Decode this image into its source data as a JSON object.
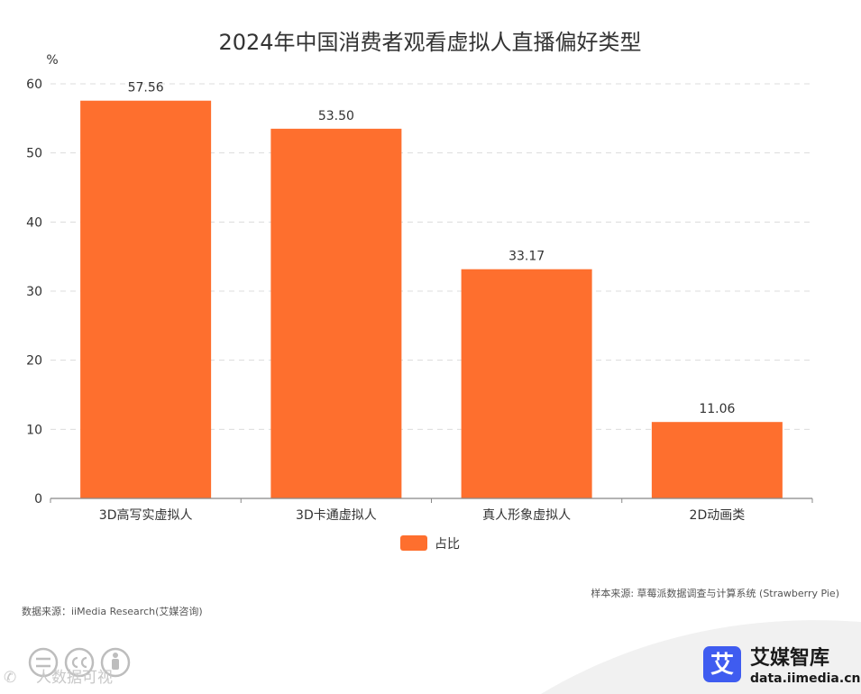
{
  "chart_data": {
    "type": "bar",
    "title": "2024年中国消费者观看虚拟人直播偏好类型",
    "ylabel": "%",
    "xlabel": "",
    "ylim": [
      0,
      60
    ],
    "yticks": [
      0,
      10,
      20,
      30,
      40,
      50,
      60
    ],
    "grid": true,
    "categories": [
      "3D高写实虚拟人",
      "3D卡通虚拟人",
      "真人形象虚拟人",
      "2D动画类"
    ],
    "series": [
      {
        "name": "占比",
        "values": [
          57.56,
          53.5,
          33.17,
          11.06
        ],
        "labels": [
          "57.56",
          "53.50",
          "33.17",
          "11.06"
        ],
        "color": "#fe6f2e"
      }
    ],
    "legend_position": "bottom-center"
  },
  "footer": {
    "sample_source": "样本来源: 草莓派数据调查与计算系统 (Strawberry Pie)",
    "data_source": "数据来源：iiMedia Research(艾媒咨询)"
  },
  "brand": {
    "logo_char": "艾",
    "name": "艾媒智库",
    "url": "data.iimedia.cn",
    "color": "#3f5cf0"
  },
  "watermark": {
    "text": "人数据可视"
  }
}
